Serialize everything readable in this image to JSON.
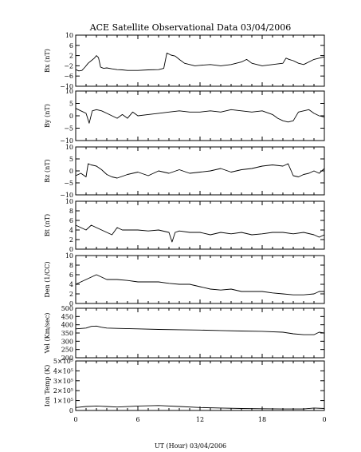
{
  "chart_data": {
    "type": "line",
    "title": "ACE Satellite Observational Data   03/04/2006",
    "xlabel": "UT (Hour)   03/04/2006",
    "x_ticks": [
      "0",
      "6",
      "12",
      "18",
      "0"
    ],
    "x_range": [
      0,
      24
    ],
    "grid": false,
    "panels": [
      {
        "name": "bx",
        "ylabel": "Bx (nT)",
        "ylim": [
          -10,
          10
        ],
        "y_ticks": [
          -10,
          -6,
          -2,
          2,
          6,
          10
        ],
        "y_tick_labels": [
          "−10",
          "−6",
          "−2",
          "2",
          "6",
          "10"
        ],
        "x": [
          0,
          0.3,
          0.6,
          0.9,
          1.2,
          1.5,
          1.8,
          2.0,
          2.2,
          2.4,
          2.7,
          3.0,
          3.5,
          4.0,
          4.5,
          5.0,
          6.0,
          7.0,
          8.0,
          8.5,
          8.8,
          9.2,
          9.6,
          10.0,
          10.5,
          11.0,
          11.5,
          12.0,
          13.0,
          14.0,
          15.0,
          16.0,
          16.5,
          17.0,
          17.5,
          18.0,
          19.0,
          20.0,
          20.3,
          20.6,
          21.0,
          21.5,
          22.0,
          22.5,
          23.0,
          23.5,
          24.0
        ],
        "values": [
          -3.5,
          -4,
          -3.8,
          -2.5,
          -1,
          0,
          1,
          2,
          1.2,
          -2.5,
          -3,
          -2.8,
          -3.2,
          -3.5,
          -3.6,
          -3.8,
          -3.8,
          -3.6,
          -3.5,
          -3,
          3,
          2.2,
          1.8,
          0.5,
          -1,
          -1.5,
          -2,
          -1.8,
          -1.5,
          -2,
          -1.5,
          -0.5,
          0.5,
          -1,
          -1.5,
          -2,
          -1.5,
          -1,
          1,
          0.5,
          0,
          -1,
          -1.5,
          -0.5,
          0.5,
          1,
          1.5
        ]
      },
      {
        "name": "by",
        "ylabel": "By (nT)",
        "ylim": [
          -10,
          10
        ],
        "y_ticks": [
          -10,
          -5,
          0,
          5,
          10
        ],
        "y_tick_labels": [
          "−10",
          "−5",
          "0",
          "5",
          "10"
        ],
        "x": [
          0,
          0.5,
          1.0,
          1.3,
          1.6,
          2.0,
          2.5,
          3.0,
          3.5,
          4.0,
          4.5,
          5.0,
          5.5,
          6.0,
          7.0,
          8.0,
          9.0,
          10.0,
          11.0,
          12.0,
          13.0,
          14.0,
          15.0,
          16.0,
          17.0,
          18.0,
          19.0,
          19.5,
          20.0,
          20.5,
          21.0,
          21.5,
          22.0,
          22.5,
          23.0,
          23.5,
          24.0
        ],
        "values": [
          3,
          2,
          1,
          -3,
          2,
          2.5,
          2,
          1,
          0,
          -1,
          0.5,
          -1,
          1.5,
          0,
          0.5,
          1,
          1.5,
          2,
          1.5,
          1.5,
          2,
          1.5,
          2.5,
          2,
          1.5,
          2,
          0.5,
          -1,
          -2,
          -2.5,
          -2,
          1.5,
          2,
          2.5,
          1,
          0,
          -0.5
        ]
      },
      {
        "name": "bz",
        "ylabel": "Bz (nT)",
        "ylim": [
          -10,
          10
        ],
        "y_ticks": [
          -10,
          -5,
          0,
          5,
          10
        ],
        "y_tick_labels": [
          "−10",
          "−5",
          "0",
          "5",
          "10"
        ],
        "x": [
          0,
          0.5,
          1.0,
          1.2,
          1.5,
          2.0,
          2.5,
          3.0,
          3.5,
          4.0,
          5.0,
          6.0,
          7.0,
          8.0,
          9.0,
          10.0,
          11.0,
          12.0,
          13.0,
          14.0,
          15.0,
          16.0,
          17.0,
          18.0,
          19.0,
          20.0,
          20.5,
          21.0,
          21.5,
          22.0,
          22.5,
          23.0,
          23.5,
          24.0
        ],
        "values": [
          -2,
          -1,
          -2.5,
          3,
          2.5,
          2,
          0.5,
          -1.5,
          -2.5,
          -3,
          -1.5,
          -0.5,
          -2,
          0,
          -1,
          0.5,
          -1,
          -0.5,
          0,
          1,
          -0.5,
          0.5,
          1,
          2,
          2.5,
          2,
          3,
          -2,
          -2.5,
          -1.5,
          -1,
          0,
          -1,
          1
        ]
      },
      {
        "name": "bt",
        "ylabel": "Bt (nT)",
        "ylim": [
          0,
          10
        ],
        "y_ticks": [
          0,
          2,
          4,
          6,
          8,
          10
        ],
        "y_tick_labels": [
          "0",
          "2",
          "4",
          "6",
          "8",
          "10"
        ],
        "x": [
          0,
          0.5,
          1.0,
          1.5,
          2.0,
          2.5,
          3.0,
          3.5,
          4.0,
          4.5,
          5.0,
          6.0,
          7.0,
          8.0,
          9.0,
          9.3,
          9.6,
          10.0,
          11.0,
          12.0,
          13.0,
          14.0,
          15.0,
          16.0,
          17.0,
          18.0,
          19.0,
          20.0,
          21.0,
          22.0,
          23.0,
          23.5,
          24.0
        ],
        "values": [
          5,
          4.5,
          4,
          5,
          4.5,
          4,
          3.5,
          3,
          4.5,
          4,
          4,
          4,
          3.8,
          4,
          3.5,
          1.5,
          3.5,
          3.8,
          3.5,
          3.5,
          3,
          3.5,
          3.2,
          3.5,
          3,
          3.2,
          3.5,
          3.5,
          3.2,
          3.5,
          3,
          2.5,
          3
        ]
      },
      {
        "name": "den",
        "ylabel": "Den (1/CC)",
        "ylim": [
          0,
          10
        ],
        "y_ticks": [
          0,
          2,
          4,
          6,
          8,
          10
        ],
        "y_tick_labels": [
          "0",
          "2",
          "4",
          "6",
          "8",
          "10"
        ],
        "x": [
          0,
          0.5,
          1.0,
          1.5,
          2.0,
          2.5,
          3.0,
          4.0,
          5.0,
          6.0,
          7.0,
          8.0,
          9.0,
          10.0,
          11.0,
          12.0,
          13.0,
          14.0,
          15.0,
          16.0,
          17.0,
          18.0,
          19.0,
          20.0,
          21.0,
          22.0,
          23.0,
          23.5,
          24.0
        ],
        "values": [
          4,
          4.5,
          5,
          5.5,
          6,
          5.5,
          5,
          5,
          4.8,
          4.5,
          4.5,
          4.5,
          4.2,
          4,
          4,
          3.5,
          3,
          2.8,
          3,
          2.5,
          2.5,
          2.5,
          2.2,
          2,
          1.8,
          1.8,
          2,
          2.5,
          2.5
        ]
      },
      {
        "name": "vel",
        "ylabel": "Vel (Km/sec)",
        "ylim": [
          200,
          500
        ],
        "y_ticks": [
          200,
          250,
          300,
          350,
          400,
          450,
          500
        ],
        "y_tick_labels": [
          "200",
          "250",
          "300",
          "350",
          "400",
          "450",
          "500"
        ],
        "x": [
          0,
          1.0,
          1.5,
          2.0,
          2.5,
          3.0,
          4.0,
          6.0,
          8.0,
          10.0,
          12.0,
          14.0,
          16.0,
          18.0,
          20.0,
          21.0,
          22.0,
          23.0,
          23.5,
          24.0
        ],
        "values": [
          375,
          380,
          390,
          392,
          385,
          380,
          378,
          375,
          372,
          370,
          368,
          365,
          362,
          360,
          355,
          345,
          340,
          340,
          355,
          350
        ]
      },
      {
        "name": "temp",
        "ylabel": "Ion Temp (K)",
        "ylim": [
          0,
          500000
        ],
        "y_ticks": [
          0,
          100000,
          200000,
          300000,
          400000,
          500000
        ],
        "y_tick_labels": [
          "0",
          "1×10⁵",
          "2×10⁵",
          "3×10⁵",
          "4×10⁵",
          "5×10⁵"
        ],
        "x": [
          0,
          1.0,
          2.0,
          3.0,
          4.0,
          6.0,
          8.0,
          10.0,
          12.0,
          14.0,
          16.0,
          18.0,
          20.0,
          22.0,
          23.0,
          24.0
        ],
        "values": [
          30000,
          40000,
          45000,
          40000,
          35000,
          45000,
          50000,
          40000,
          30000,
          25000,
          20000,
          18000,
          15000,
          15000,
          25000,
          20000
        ]
      }
    ]
  }
}
